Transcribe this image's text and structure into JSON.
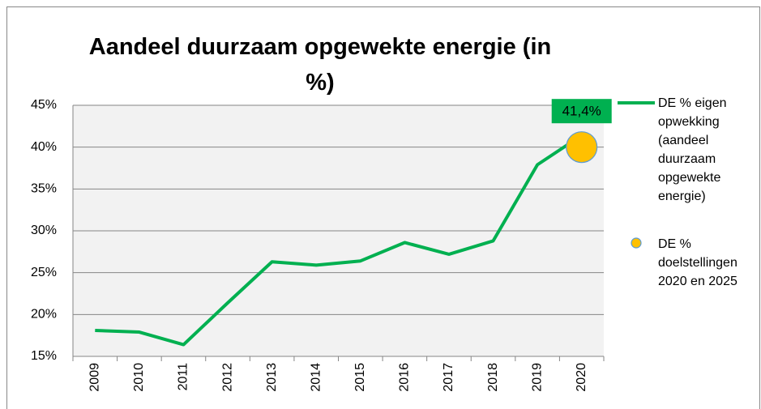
{
  "chart_data": {
    "type": "line",
    "title": "Aandeel duurzaam opgewekte energie (in %)",
    "categories": [
      "2009",
      "2010",
      "2011",
      "2012",
      "2013",
      "2014",
      "2015",
      "2016",
      "2017",
      "2018",
      "2019",
      "2020"
    ],
    "series": [
      {
        "name": "DE % eigen opwekking (aandeel duurzaam opgewekte energie)",
        "color": "#00b050",
        "values": [
          18.1,
          17.9,
          16.4,
          21.4,
          26.3,
          25.9,
          26.4,
          28.6,
          27.2,
          28.8,
          37.9,
          41.4
        ],
        "value_labels": [
          null,
          null,
          null,
          null,
          null,
          null,
          null,
          null,
          null,
          null,
          null,
          "41,4%"
        ]
      },
      {
        "name": "DE % doelstellingen 2020 en 2025",
        "color": "#ffc000",
        "marker": "circle",
        "values": [
          null,
          null,
          null,
          null,
          null,
          null,
          null,
          null,
          null,
          null,
          null,
          40
        ]
      }
    ],
    "ylim": [
      15,
      45
    ],
    "yticks": [
      {
        "value": 15,
        "label": "15%"
      },
      {
        "value": 20,
        "label": "20%"
      },
      {
        "value": 25,
        "label": "25%"
      },
      {
        "value": 30,
        "label": "30%"
      },
      {
        "value": 35,
        "label": "35%"
      },
      {
        "value": 40,
        "label": "40%"
      },
      {
        "value": 45,
        "label": "45%"
      }
    ],
    "grid": true,
    "legend": "right"
  }
}
